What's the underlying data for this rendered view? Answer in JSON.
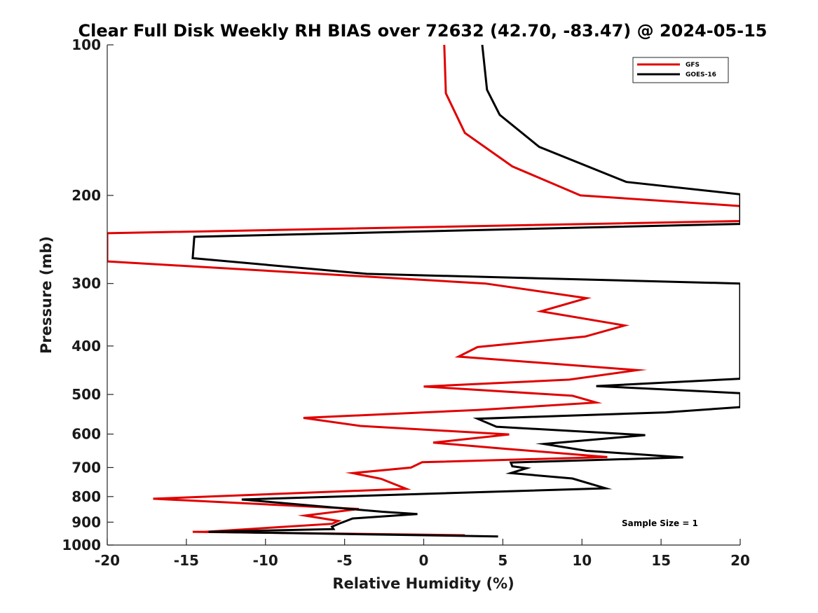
{
  "chart_data": {
    "type": "line",
    "title": "Clear Full Disk Weekly RH BIAS over 72632 (42.70, -83.47) @ 2024-05-15",
    "xlabel": "Relative Humidity (%)",
    "ylabel": "Pressure (mb)",
    "xlim": [
      -20,
      20
    ],
    "ylim": [
      100,
      1000
    ],
    "y_scale": "log",
    "y_reversed": true,
    "x_ticks": [
      -20,
      -15,
      -10,
      -5,
      0,
      5,
      10,
      15,
      20
    ],
    "x_tick_labels": [
      "-20",
      "-15",
      "-10",
      "-5",
      "0",
      "5",
      "10",
      "15",
      "20"
    ],
    "y_ticks": [
      100,
      200,
      300,
      400,
      500,
      600,
      700,
      800,
      900,
      1000
    ],
    "y_tick_labels": [
      "100",
      "200",
      "300",
      "400",
      "500",
      "600",
      "700",
      "800",
      "900",
      "1000"
    ],
    "grid": false,
    "legend_position": "top-right",
    "annotation": "Sample Size = 1",
    "series": [
      {
        "name": "GFS",
        "color": "#e00000",
        "points": [
          [
            1.3,
            100
          ],
          [
            1.4,
            125
          ],
          [
            2.6,
            150
          ],
          [
            5.6,
            175
          ],
          [
            9.9,
            200
          ],
          [
            20,
            210
          ],
          [
            20,
            225
          ],
          [
            -20,
            238
          ],
          [
            -20,
            271
          ],
          [
            3.9,
            300
          ],
          [
            10.3,
            321
          ],
          [
            7.4,
            341
          ],
          [
            12.7,
            364
          ],
          [
            10.2,
            383
          ],
          [
            3.4,
            402
          ],
          [
            2.2,
            420
          ],
          [
            13.5,
            447
          ],
          [
            9.2,
            467
          ],
          [
            0,
            482
          ],
          [
            9.4,
            503
          ],
          [
            10.9,
            519
          ],
          [
            3.4,
            537
          ],
          [
            -7.6,
            557
          ],
          [
            -4,
            578
          ],
          [
            5.4,
            601
          ],
          [
            0.6,
            624
          ],
          [
            4.9,
            641
          ],
          [
            11.6,
            667
          ],
          [
            -0.1,
            683
          ],
          [
            -0.8,
            700
          ],
          [
            -4.5,
            718
          ],
          [
            -2.7,
            737
          ],
          [
            -1.1,
            772
          ],
          [
            -17.1,
            808
          ],
          [
            -4.1,
            847
          ],
          [
            -7.5,
            873
          ],
          [
            -5.4,
            895
          ],
          [
            -5.8,
            907
          ],
          [
            -13.8,
            941
          ],
          [
            -14.6,
            941
          ],
          [
            2.6,
            956
          ]
        ]
      },
      {
        "name": "GOES-16",
        "color": "#000000",
        "points": [
          [
            3.7,
            100
          ],
          [
            4,
            123
          ],
          [
            4.8,
            138
          ],
          [
            7.3,
            160
          ],
          [
            12.8,
            188
          ],
          [
            20,
            199
          ],
          [
            20,
            228
          ],
          [
            -14.5,
            242
          ],
          [
            -14.6,
            267
          ],
          [
            -3.6,
            287
          ],
          [
            20,
            300
          ],
          [
            20,
            465
          ],
          [
            10.9,
            481
          ],
          [
            20,
            497
          ],
          [
            20,
            530
          ],
          [
            15.3,
            543
          ],
          [
            3.4,
            559
          ],
          [
            4.6,
            580
          ],
          [
            14,
            603
          ],
          [
            7.6,
            628
          ],
          [
            10.3,
            648
          ],
          [
            16.4,
            668
          ],
          [
            5.5,
            684
          ],
          [
            5.6,
            696
          ],
          [
            6.5,
            702
          ],
          [
            5.5,
            718
          ],
          [
            9.4,
            736
          ],
          [
            11.5,
            770
          ],
          [
            -11.5,
            811
          ],
          [
            -2.6,
            858
          ],
          [
            -0.4,
            867
          ],
          [
            -4.5,
            885
          ],
          [
            -4.9,
            895
          ],
          [
            -5.3,
            905
          ],
          [
            -5.8,
            919
          ],
          [
            -5.7,
            929
          ],
          [
            -13.6,
            941
          ],
          [
            4.7,
            961
          ]
        ]
      }
    ]
  }
}
